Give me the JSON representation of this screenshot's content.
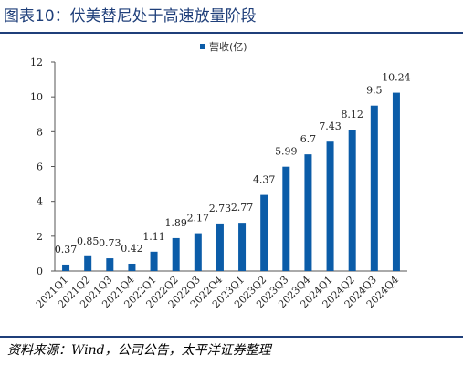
{
  "header": {
    "title": "图表10：伏美替尼处于高速放量阶段"
  },
  "footer": {
    "source": "资料来源：Wind，公司公告，太平洋证券整理"
  },
  "colors": {
    "accent": "#1f3f7a",
    "bar": "#0b5ca8",
    "axis": "#555555"
  },
  "chart_data": {
    "type": "bar",
    "categories": [
      "2021Q1",
      "2021Q2",
      "2021Q3",
      "2021Q4",
      "2022Q1",
      "2022Q2",
      "2022Q3",
      "2022Q4",
      "2023Q1",
      "2023Q2",
      "2023Q3",
      "2023Q4",
      "2024Q1",
      "2024Q2",
      "2024Q3",
      "2024Q4"
    ],
    "series": [
      {
        "name": "营收(亿)",
        "values": [
          0.37,
          0.85,
          0.73,
          0.42,
          1.11,
          1.89,
          2.17,
          2.73,
          2.77,
          4.37,
          5.99,
          6.7,
          7.43,
          8.12,
          9.5,
          10.24
        ]
      }
    ],
    "data_labels": [
      "0.37",
      "0.85",
      "0.73",
      "0.42",
      "1.11",
      "1.89",
      "2.17",
      "2.73",
      "2.77",
      "4.37",
      "5.99",
      "6.7",
      "7.43",
      "8.12",
      "9.5",
      "10.24"
    ],
    "yticks": [
      "0",
      "2",
      "4",
      "6",
      "8",
      "10",
      "12"
    ],
    "ylim": [
      0,
      12
    ],
    "legend": "top-right",
    "grid": false
  }
}
